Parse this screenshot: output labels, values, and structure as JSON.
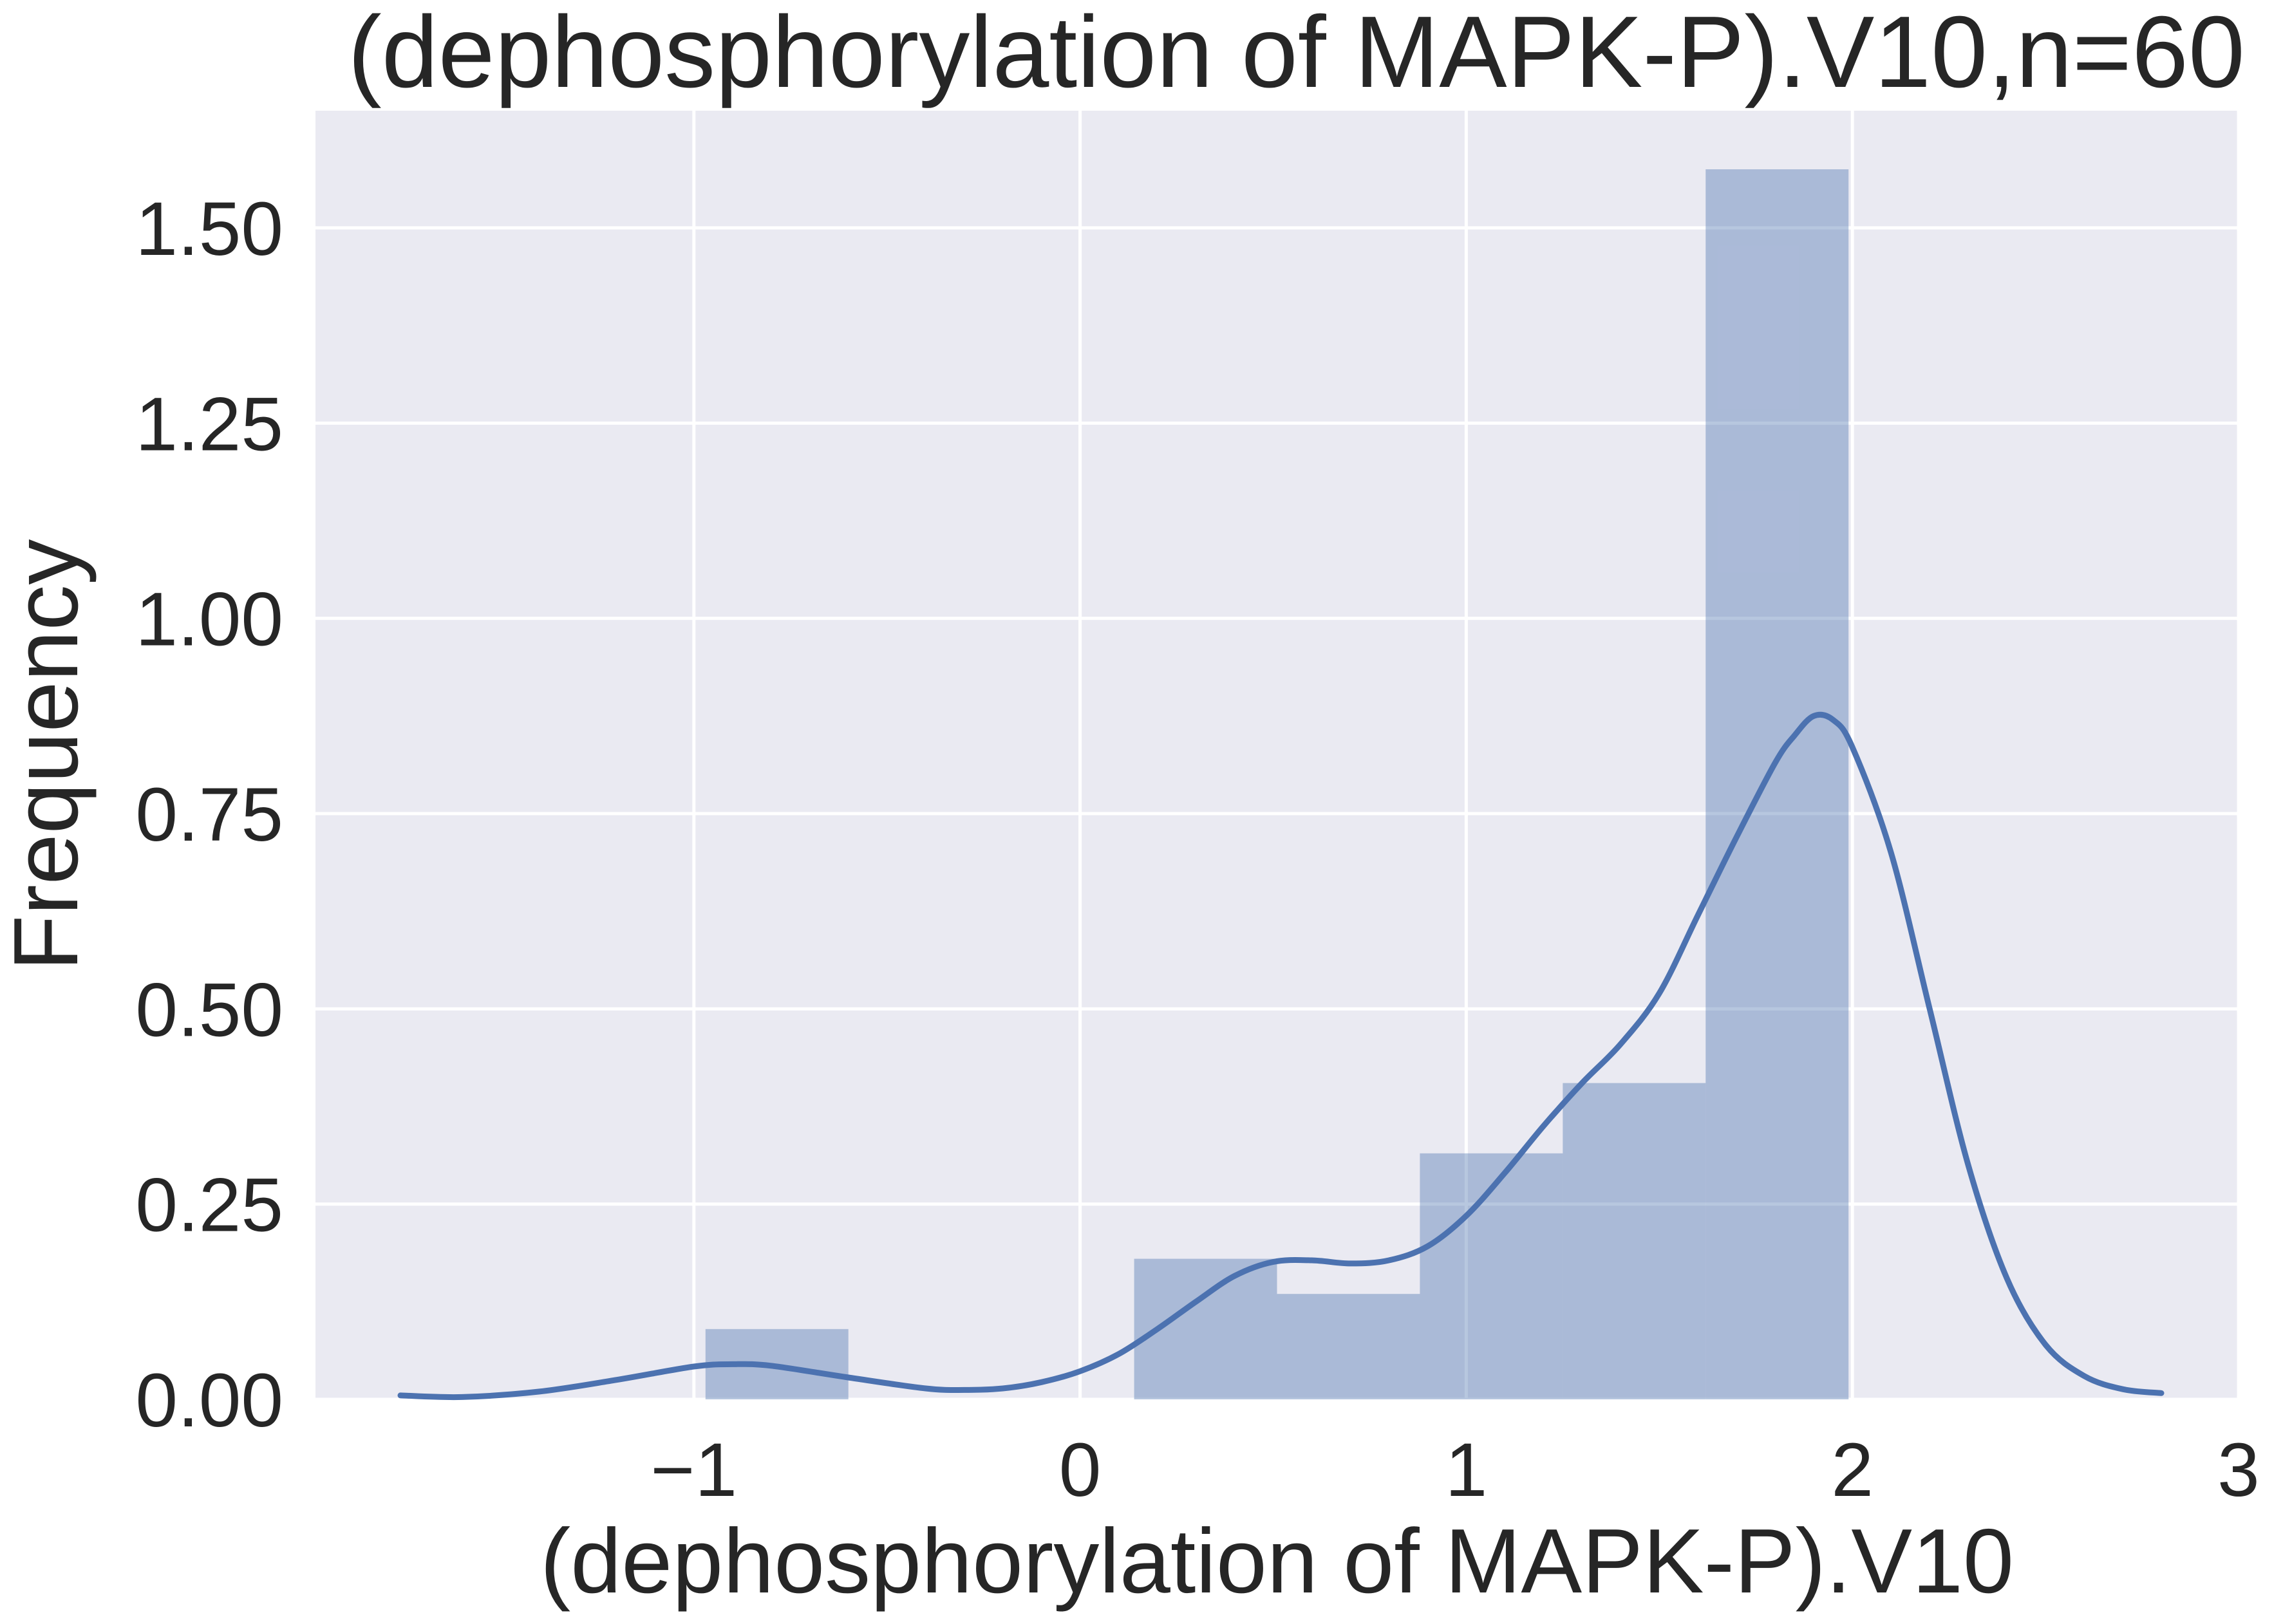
{
  "chart_data": {
    "type": "bar",
    "title": "(dephosphorylation of MAPK-P).V10,n=60",
    "xlabel": "(dephosphorylation of MAPK-P).V10",
    "ylabel": "Frequency",
    "xlim": [
      -1.98,
      3.0
    ],
    "ylim": [
      0,
      1.65
    ],
    "x_ticks": [
      -1,
      0,
      1,
      2,
      3
    ],
    "x_tick_labels": [
      "−1",
      "0",
      "1",
      "2",
      "3"
    ],
    "y_ticks": [
      0,
      0.25,
      0.5,
      0.75,
      1.0,
      1.25,
      1.5
    ],
    "y_tick_labels": [
      "0.00",
      "0.25",
      "0.50",
      "0.75",
      "1.00",
      "1.25",
      "1.50"
    ],
    "grid": true,
    "colors": {
      "background": "#eaeaf2",
      "grid": "#ffffff",
      "bars": "#4c72b0",
      "bars_opacity": 0.4,
      "kde": "#4c72b0",
      "text": "#262626"
    },
    "histogram": {
      "bins": [
        {
          "x0": -0.97,
          "x1": -0.6,
          "value": 0.09
        },
        {
          "x0": -0.6,
          "x1": -0.23,
          "value": 0.0
        },
        {
          "x0": -0.23,
          "x1": 0.14,
          "value": 0.0
        },
        {
          "x0": 0.14,
          "x1": 0.51,
          "value": 0.18
        },
        {
          "x0": 0.51,
          "x1": 0.88,
          "value": 0.135
        },
        {
          "x0": 0.88,
          "x1": 1.25,
          "value": 0.315
        },
        {
          "x0": 1.25,
          "x1": 1.62,
          "value": 0.405
        },
        {
          "x0": 1.62,
          "x1": 1.99,
          "value": 1.575
        }
      ]
    },
    "kde": {
      "x": [
        -1.76,
        -1.6,
        -1.4,
        -1.2,
        -1.0,
        -0.9,
        -0.8,
        -0.6,
        -0.4,
        -0.3,
        -0.2,
        -0.1,
        0.0,
        0.1,
        0.2,
        0.3,
        0.4,
        0.5,
        0.6,
        0.7,
        0.8,
        0.9,
        1.0,
        1.1,
        1.2,
        1.3,
        1.4,
        1.5,
        1.6,
        1.7,
        1.8,
        1.85,
        1.9,
        1.95,
        2.0,
        2.1,
        2.2,
        2.3,
        2.4,
        2.5,
        2.6,
        2.7,
        2.8
      ],
      "y": [
        0.005,
        0.003,
        0.01,
        0.025,
        0.042,
        0.045,
        0.043,
        0.028,
        0.014,
        0.012,
        0.014,
        0.022,
        0.036,
        0.058,
        0.09,
        0.125,
        0.158,
        0.176,
        0.178,
        0.174,
        0.178,
        0.196,
        0.235,
        0.29,
        0.35,
        0.405,
        0.455,
        0.52,
        0.62,
        0.72,
        0.815,
        0.85,
        0.875,
        0.87,
        0.835,
        0.7,
        0.5,
        0.3,
        0.155,
        0.07,
        0.03,
        0.013,
        0.008
      ]
    }
  }
}
